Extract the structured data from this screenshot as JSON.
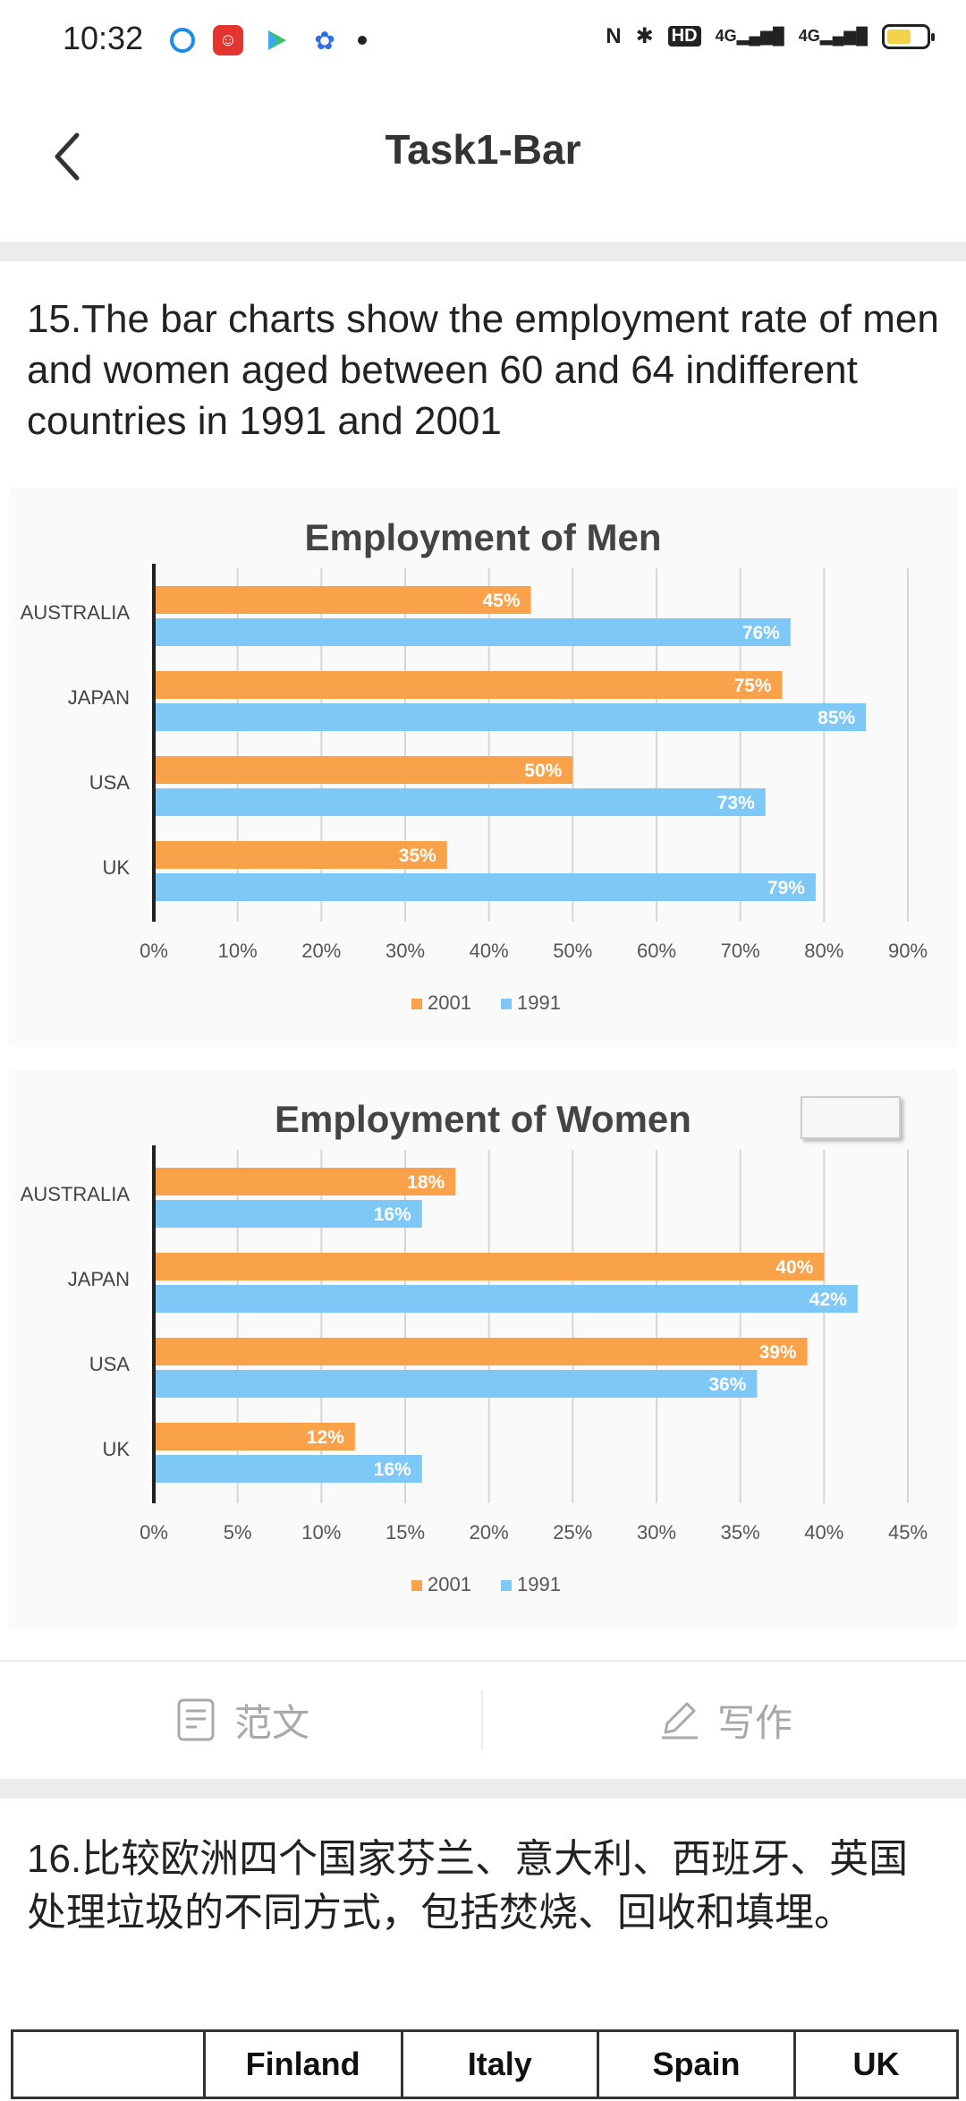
{
  "status_bar": {
    "time": "10:32",
    "network": "4G",
    "hd": "HD"
  },
  "nav": {
    "title": "Task1-Bar"
  },
  "question15": {
    "text": "15.The bar charts show the employment rate of men and women aged between 60 and 64 indifferent countries in 1991 and 2001"
  },
  "question16": {
    "text": "16.比较欧洲四个国家芬兰、意大利、西班牙、英国处理垃圾的不同方式，包括焚烧、回收和填埋。"
  },
  "actions": {
    "sample_label": "范文",
    "write_label": "写作"
  },
  "table": {
    "headers": [
      "",
      "Finland",
      "Italy",
      "Spain",
      "UK"
    ]
  },
  "colors": {
    "series_2001": "#f9a24a",
    "series_1991": "#7ec8f8",
    "axis": "#222222"
  },
  "chart_data": [
    {
      "type": "bar",
      "orientation": "horizontal",
      "title": "Employment of Men",
      "categories": [
        "AUSTRALIA",
        "JAPAN",
        "USA",
        "UK"
      ],
      "series": [
        {
          "name": "2001",
          "values": [
            45,
            75,
            50,
            35
          ]
        },
        {
          "name": "1991",
          "values": [
            76,
            85,
            73,
            79
          ]
        }
      ],
      "xlim": [
        0,
        90
      ],
      "xticks": [
        "0%",
        "10%",
        "20%",
        "30%",
        "40%",
        "50%",
        "60%",
        "70%",
        "80%",
        "90%"
      ],
      "tick_step": 10,
      "legend": "bottom",
      "grid": true
    },
    {
      "type": "bar",
      "orientation": "horizontal",
      "title": "Employment of Women",
      "categories": [
        "AUSTRALIA",
        "JAPAN",
        "USA",
        "UK"
      ],
      "series": [
        {
          "name": "2001",
          "values": [
            18,
            40,
            39,
            12
          ]
        },
        {
          "name": "1991",
          "values": [
            16,
            42,
            36,
            16
          ]
        }
      ],
      "xlim": [
        0,
        45
      ],
      "xticks": [
        "0%",
        "5%",
        "10%",
        "15%",
        "20%",
        "25%",
        "30%",
        "35%",
        "40%",
        "45%"
      ],
      "tick_step": 5,
      "legend": "bottom",
      "grid": true
    }
  ]
}
